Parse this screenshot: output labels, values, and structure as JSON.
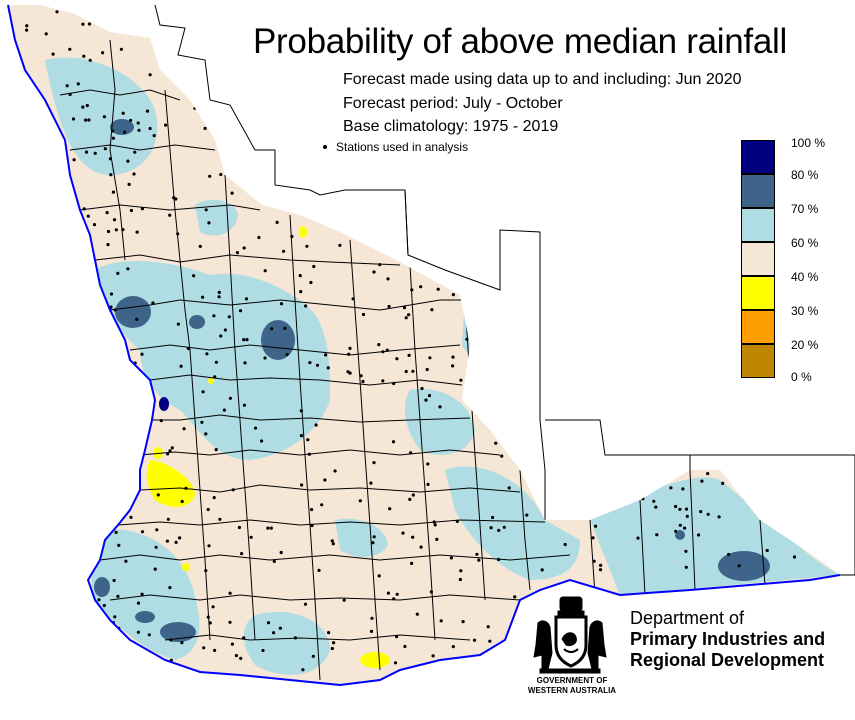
{
  "title": "Probability of above median rainfall",
  "subtitle_lines": [
    "Forecast made using data up to and including: Jun 2020",
    "Forecast period: July - October",
    "Base climatology: 1975 - 2019"
  ],
  "stations_label": "Stations used in analysis",
  "legend": [
    {
      "label": "100 %",
      "color": "#00007f"
    },
    {
      "label": "80 %",
      "color": "#3e6589"
    },
    {
      "label": "70 %",
      "color": "#b0dde3"
    },
    {
      "label": "60 %",
      "color": "#f5e6d6"
    },
    {
      "label": "40 %",
      "color": "#ffff00"
    },
    {
      "label": "30 %",
      "color": "#ff9e00"
    },
    {
      "label": "20 %",
      "color": "#bf8600"
    },
    {
      "label": "0 %",
      "color": ""
    }
  ],
  "colors": {
    "land_base": "#f5e6d6",
    "zone_70_80": "#b0dde3",
    "zone_80_100": "#3e6589",
    "zone_100": "#00007f",
    "zone_30_40": "#ffff00",
    "coastline": "#0000ff",
    "boundaries": "#000000"
  },
  "org": {
    "line1": "Department of",
    "line2": "Primary Industries and",
    "line3": "Regional Development"
  },
  "government": {
    "line1": "GOVERNMENT OF",
    "line2": "WESTERN AUSTRALIA"
  },
  "icons": [
    "western-australia-crest-icon",
    "station-dot-icon"
  ]
}
